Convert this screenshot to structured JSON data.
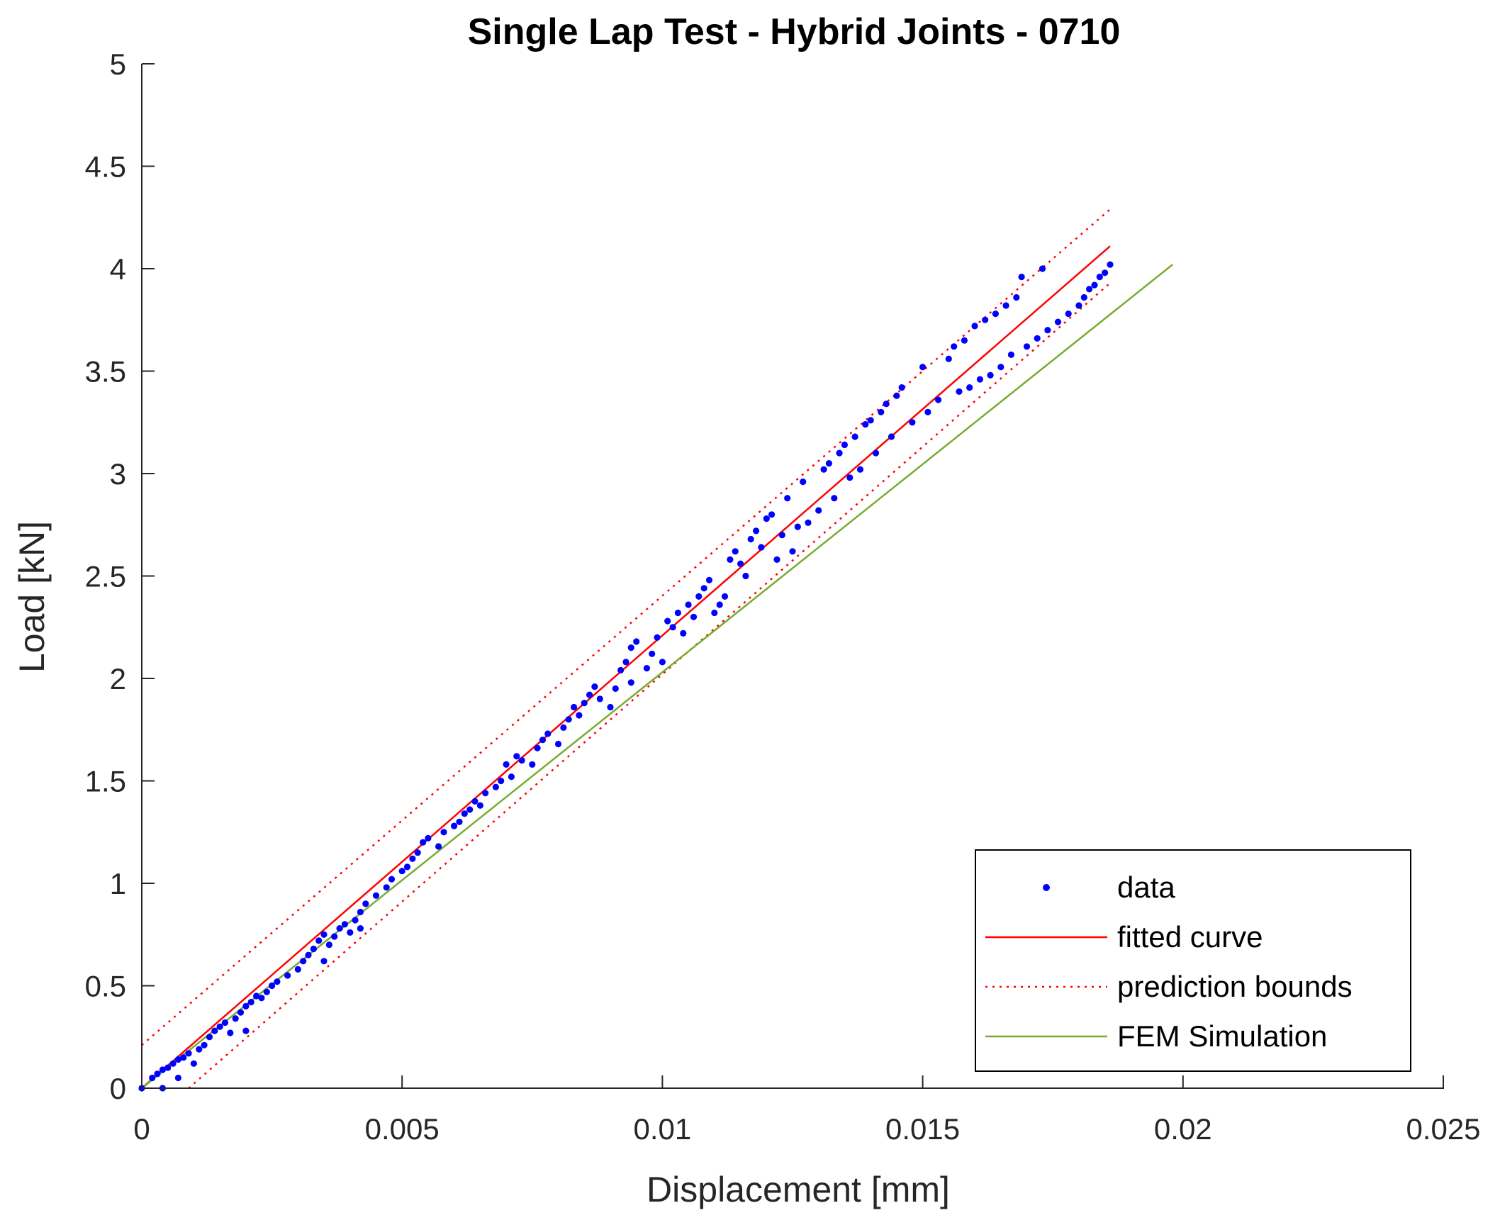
{
  "chart_data": {
    "type": "scatter",
    "title": "Single Lap Test - Hybrid Joints - 0710",
    "xlabel": "Displacement [mm]",
    "ylabel": "Load [kN]",
    "xlim": [
      0,
      0.025
    ],
    "ylim": [
      0,
      5
    ],
    "xticks": [
      "0",
      "0.005",
      "0.01",
      "0.015",
      "0.02",
      "0.025"
    ],
    "yticks": [
      "0",
      "0.5",
      "1",
      "1.5",
      "2",
      "2.5",
      "3",
      "3.5",
      "4",
      "4.5",
      "5"
    ],
    "grid": false,
    "legend_position": "bottom-right",
    "series": [
      {
        "name": "data",
        "kind": "points",
        "color": "#0000ff",
        "points": [
          [
            0.0,
            0.0
          ],
          [
            0.0002,
            0.05
          ],
          [
            0.0003,
            0.07
          ],
          [
            0.0004,
            0.09
          ],
          [
            0.0004,
            0.0
          ],
          [
            0.0005,
            0.1
          ],
          [
            0.0006,
            0.12
          ],
          [
            0.0007,
            0.05
          ],
          [
            0.0007,
            0.14
          ],
          [
            0.0008,
            0.15
          ],
          [
            0.0009,
            0.17
          ],
          [
            0.001,
            0.12
          ],
          [
            0.0011,
            0.19
          ],
          [
            0.0012,
            0.21
          ],
          [
            0.0013,
            0.25
          ],
          [
            0.0014,
            0.28
          ],
          [
            0.0015,
            0.3
          ],
          [
            0.0016,
            0.32
          ],
          [
            0.0017,
            0.27
          ],
          [
            0.0018,
            0.34
          ],
          [
            0.0019,
            0.37
          ],
          [
            0.002,
            0.28
          ],
          [
            0.002,
            0.4
          ],
          [
            0.0021,
            0.42
          ],
          [
            0.0022,
            0.45
          ],
          [
            0.0023,
            0.44
          ],
          [
            0.0024,
            0.47
          ],
          [
            0.0025,
            0.5
          ],
          [
            0.0026,
            0.52
          ],
          [
            0.0028,
            0.55
          ],
          [
            0.003,
            0.58
          ],
          [
            0.0031,
            0.62
          ],
          [
            0.0032,
            0.65
          ],
          [
            0.0033,
            0.68
          ],
          [
            0.0034,
            0.72
          ],
          [
            0.0035,
            0.75
          ],
          [
            0.0035,
            0.62
          ],
          [
            0.0036,
            0.7
          ],
          [
            0.0037,
            0.74
          ],
          [
            0.0038,
            0.78
          ],
          [
            0.0039,
            0.8
          ],
          [
            0.004,
            0.76
          ],
          [
            0.0041,
            0.82
          ],
          [
            0.0042,
            0.78
          ],
          [
            0.0042,
            0.86
          ],
          [
            0.0043,
            0.9
          ],
          [
            0.0045,
            0.94
          ],
          [
            0.0047,
            0.98
          ],
          [
            0.0048,
            1.02
          ],
          [
            0.005,
            1.06
          ],
          [
            0.0051,
            1.08
          ],
          [
            0.0052,
            1.12
          ],
          [
            0.0053,
            1.15
          ],
          [
            0.0054,
            1.2
          ],
          [
            0.0055,
            1.22
          ],
          [
            0.0057,
            1.18
          ],
          [
            0.0058,
            1.25
          ],
          [
            0.006,
            1.28
          ],
          [
            0.0061,
            1.3
          ],
          [
            0.0062,
            1.34
          ],
          [
            0.0063,
            1.36
          ],
          [
            0.0064,
            1.4
          ],
          [
            0.0065,
            1.38
          ],
          [
            0.0066,
            1.44
          ],
          [
            0.0068,
            1.47
          ],
          [
            0.0069,
            1.5
          ],
          [
            0.007,
            1.58
          ],
          [
            0.0071,
            1.52
          ],
          [
            0.0072,
            1.62
          ],
          [
            0.0073,
            1.6
          ],
          [
            0.0075,
            1.58
          ],
          [
            0.0076,
            1.66
          ],
          [
            0.0077,
            1.7
          ],
          [
            0.0078,
            1.73
          ],
          [
            0.008,
            1.68
          ],
          [
            0.0081,
            1.76
          ],
          [
            0.0082,
            1.8
          ],
          [
            0.0083,
            1.86
          ],
          [
            0.0084,
            1.82
          ],
          [
            0.0085,
            1.88
          ],
          [
            0.0086,
            1.92
          ],
          [
            0.0087,
            1.96
          ],
          [
            0.0088,
            1.9
          ],
          [
            0.009,
            1.86
          ],
          [
            0.0091,
            1.95
          ],
          [
            0.0092,
            2.04
          ],
          [
            0.0093,
            2.08
          ],
          [
            0.0094,
            1.98
          ],
          [
            0.0094,
            2.15
          ],
          [
            0.0095,
            2.18
          ],
          [
            0.0097,
            2.05
          ],
          [
            0.0098,
            2.12
          ],
          [
            0.0099,
            2.2
          ],
          [
            0.01,
            2.08
          ],
          [
            0.0101,
            2.28
          ],
          [
            0.0102,
            2.25
          ],
          [
            0.0103,
            2.32
          ],
          [
            0.0104,
            2.22
          ],
          [
            0.0105,
            2.36
          ],
          [
            0.0106,
            2.3
          ],
          [
            0.0107,
            2.4
          ],
          [
            0.0108,
            2.44
          ],
          [
            0.0109,
            2.48
          ],
          [
            0.011,
            2.32
          ],
          [
            0.0111,
            2.36
          ],
          [
            0.0112,
            2.4
          ],
          [
            0.0113,
            2.58
          ],
          [
            0.0114,
            2.62
          ],
          [
            0.0115,
            2.56
          ],
          [
            0.0116,
            2.5
          ],
          [
            0.0117,
            2.68
          ],
          [
            0.0118,
            2.72
          ],
          [
            0.0119,
            2.64
          ],
          [
            0.012,
            2.78
          ],
          [
            0.0121,
            2.8
          ],
          [
            0.0122,
            2.58
          ],
          [
            0.0123,
            2.7
          ],
          [
            0.0124,
            2.88
          ],
          [
            0.0125,
            2.62
          ],
          [
            0.0126,
            2.74
          ],
          [
            0.0127,
            2.96
          ],
          [
            0.0128,
            2.76
          ],
          [
            0.013,
            2.82
          ],
          [
            0.0131,
            3.02
          ],
          [
            0.0132,
            3.05
          ],
          [
            0.0133,
            2.88
          ],
          [
            0.0134,
            3.1
          ],
          [
            0.0135,
            3.14
          ],
          [
            0.0136,
            2.98
          ],
          [
            0.0137,
            3.18
          ],
          [
            0.0138,
            3.02
          ],
          [
            0.0139,
            3.24
          ],
          [
            0.014,
            3.26
          ],
          [
            0.0141,
            3.1
          ],
          [
            0.0142,
            3.3
          ],
          [
            0.0143,
            3.34
          ],
          [
            0.0144,
            3.18
          ],
          [
            0.0145,
            3.38
          ],
          [
            0.0146,
            3.42
          ],
          [
            0.0148,
            3.25
          ],
          [
            0.015,
            3.52
          ],
          [
            0.0151,
            3.3
          ],
          [
            0.0153,
            3.36
          ],
          [
            0.0155,
            3.56
          ],
          [
            0.0156,
            3.62
          ],
          [
            0.0157,
            3.4
          ],
          [
            0.0158,
            3.65
          ],
          [
            0.0159,
            3.42
          ],
          [
            0.016,
            3.72
          ],
          [
            0.0161,
            3.46
          ],
          [
            0.0162,
            3.75
          ],
          [
            0.0163,
            3.48
          ],
          [
            0.0164,
            3.78
          ],
          [
            0.0165,
            3.52
          ],
          [
            0.0166,
            3.82
          ],
          [
            0.0167,
            3.58
          ],
          [
            0.0168,
            3.86
          ],
          [
            0.0169,
            3.96
          ],
          [
            0.017,
            3.62
          ],
          [
            0.0172,
            3.66
          ],
          [
            0.0173,
            4.0
          ],
          [
            0.0174,
            3.7
          ],
          [
            0.0176,
            3.74
          ],
          [
            0.0178,
            3.78
          ],
          [
            0.018,
            3.82
          ],
          [
            0.0181,
            3.86
          ],
          [
            0.0182,
            3.9
          ],
          [
            0.0183,
            3.92
          ],
          [
            0.0184,
            3.96
          ],
          [
            0.0185,
            3.98
          ],
          [
            0.0186,
            4.02
          ]
        ]
      },
      {
        "name": "fitted curve",
        "kind": "line",
        "color": "#ff0000",
        "dash": "solid",
        "points": [
          [
            0.0,
            0.0
          ],
          [
            0.0186,
            4.11
          ]
        ]
      },
      {
        "name": "prediction bounds",
        "kind": "line",
        "color": "#ff0000",
        "dash": "dotted",
        "points": [
          [
            0.0,
            0.21
          ],
          [
            0.0186,
            4.29
          ]
        ]
      },
      {
        "name": "prediction bounds",
        "kind": "line",
        "color": "#ff0000",
        "dash": "dotted",
        "legend": false,
        "points": [
          [
            0.0009,
            0.0
          ],
          [
            0.0186,
            3.93
          ]
        ]
      },
      {
        "name": "FEM Simulation",
        "kind": "line",
        "color": "#77ac30",
        "dash": "solid",
        "points": [
          [
            0.0,
            0.0
          ],
          [
            0.0198,
            4.02
          ]
        ]
      }
    ]
  }
}
